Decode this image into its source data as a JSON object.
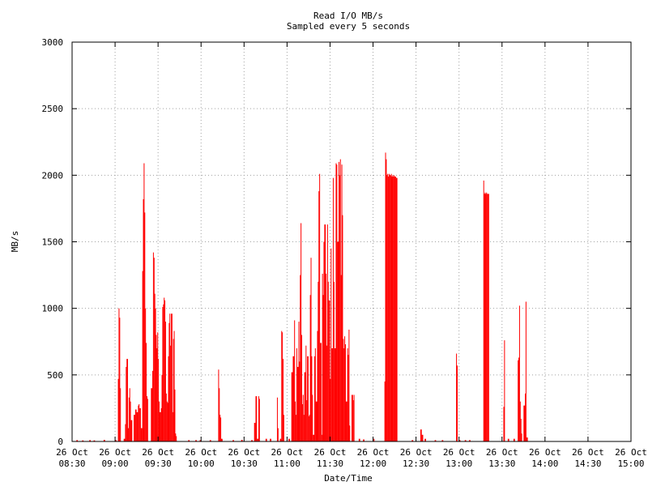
{
  "chart_data": {
    "type": "bar",
    "title": "Read I/O MB/s",
    "subtitle": "Sampled every 5 seconds",
    "xlabel": "Date/Time",
    "ylabel": "MB/s",
    "xlim": [
      "2024-10-26 08:30",
      "2024-10-26 15:00"
    ],
    "ylim": [
      0,
      3000
    ],
    "grid": true,
    "bar_color": "#ff0000",
    "x_ticks": [
      {
        "date": "26 Oct",
        "time": "08:30"
      },
      {
        "date": "26 Oct",
        "time": "09:00"
      },
      {
        "date": "26 Oct",
        "time": "09:30"
      },
      {
        "date": "26 Oct",
        "time": "10:00"
      },
      {
        "date": "26 Oct",
        "time": "10:30"
      },
      {
        "date": "26 Oct",
        "time": "11:00"
      },
      {
        "date": "26 Oct",
        "time": "11:30"
      },
      {
        "date": "26 Oct",
        "time": "12:00"
      },
      {
        "date": "26 Oct",
        "time": "12:30"
      },
      {
        "date": "26 Oct",
        "time": "13:00"
      },
      {
        "date": "26 Oct",
        "time": "13:30"
      },
      {
        "date": "26 Oct",
        "time": "14:00"
      },
      {
        "date": "26 Oct",
        "time": "14:30"
      },
      {
        "date": "26 Oct",
        "time": "15:00"
      }
    ],
    "y_ticks": [
      "0",
      "500",
      "1000",
      "1500",
      "2000",
      "2500",
      "3000"
    ],
    "samples": [
      {
        "t": "08:33",
        "v": 10
      },
      {
        "t": "08:37",
        "v": 8
      },
      {
        "t": "08:42",
        "v": 10
      },
      {
        "t": "08:45",
        "v": 8
      },
      {
        "t": "08:52",
        "v": 12
      },
      {
        "t": "09:00",
        "v": 10
      },
      {
        "t": "09:02",
        "v": 470
      },
      {
        "t": "09:02",
        "v": 1000
      },
      {
        "t": "09:03",
        "v": 930
      },
      {
        "t": "09:03",
        "v": 400
      },
      {
        "t": "09:06",
        "v": 20
      },
      {
        "t": "09:07",
        "v": 130
      },
      {
        "t": "09:07",
        "v": 560
      },
      {
        "t": "09:08",
        "v": 620
      },
      {
        "t": "09:09",
        "v": 100
      },
      {
        "t": "09:09",
        "v": 330
      },
      {
        "t": "09:10",
        "v": 400
      },
      {
        "t": "09:10",
        "v": 300
      },
      {
        "t": "09:11",
        "v": 160
      },
      {
        "t": "09:13",
        "v": 200
      },
      {
        "t": "09:14",
        "v": 240
      },
      {
        "t": "09:15",
        "v": 220
      },
      {
        "t": "09:16",
        "v": 270
      },
      {
        "t": "09:16",
        "v": 280
      },
      {
        "t": "09:17",
        "v": 250
      },
      {
        "t": "09:18",
        "v": 100
      },
      {
        "t": "09:19",
        "v": 1280
      },
      {
        "t": "09:19",
        "v": 1820
      },
      {
        "t": "09:20",
        "v": 2090
      },
      {
        "t": "09:20",
        "v": 1720
      },
      {
        "t": "09:21",
        "v": 1000
      },
      {
        "t": "09:21",
        "v": 740
      },
      {
        "t": "09:22",
        "v": 340
      },
      {
        "t": "09:22",
        "v": 320
      },
      {
        "t": "09:25",
        "v": 400
      },
      {
        "t": "09:26",
        "v": 530
      },
      {
        "t": "09:26",
        "v": 1420
      },
      {
        "t": "09:27",
        "v": 1380
      },
      {
        "t": "09:27",
        "v": 1110
      },
      {
        "t": "09:28",
        "v": 1000
      },
      {
        "t": "09:28",
        "v": 800
      },
      {
        "t": "09:29",
        "v": 700
      },
      {
        "t": "09:29",
        "v": 820
      },
      {
        "t": "09:30",
        "v": 620
      },
      {
        "t": "09:30",
        "v": 300
      },
      {
        "t": "09:31",
        "v": 220
      },
      {
        "t": "09:32",
        "v": 250
      },
      {
        "t": "09:32",
        "v": 500
      },
      {
        "t": "09:33",
        "v": 1010
      },
      {
        "t": "09:33",
        "v": 1030
      },
      {
        "t": "09:34",
        "v": 1080
      },
      {
        "t": "09:34",
        "v": 1060
      },
      {
        "t": "09:35",
        "v": 900
      },
      {
        "t": "09:35",
        "v": 360
      },
      {
        "t": "09:36",
        "v": 300
      },
      {
        "t": "09:36",
        "v": 290
      },
      {
        "t": "09:37",
        "v": 640
      },
      {
        "t": "09:37",
        "v": 890
      },
      {
        "t": "09:38",
        "v": 960
      },
      {
        "t": "09:38",
        "v": 720
      },
      {
        "t": "09:39",
        "v": 960
      },
      {
        "t": "09:40",
        "v": 220
      },
      {
        "t": "09:40",
        "v": 770
      },
      {
        "t": "09:41",
        "v": 830
      },
      {
        "t": "09:41",
        "v": 390
      },
      {
        "t": "09:42",
        "v": 60
      },
      {
        "t": "09:42",
        "v": 40
      },
      {
        "t": "09:51",
        "v": 10
      },
      {
        "t": "09:56",
        "v": 10
      },
      {
        "t": "09:59",
        "v": 10
      },
      {
        "t": "10:06",
        "v": 10
      },
      {
        "t": "10:12",
        "v": 540
      },
      {
        "t": "10:12",
        "v": 400
      },
      {
        "t": "10:13",
        "v": 200
      },
      {
        "t": "10:13",
        "v": 180
      },
      {
        "t": "10:14",
        "v": 20
      },
      {
        "t": "10:22",
        "v": 10
      },
      {
        "t": "10:28",
        "v": 12
      },
      {
        "t": "10:35",
        "v": 10
      },
      {
        "t": "10:37",
        "v": 140
      },
      {
        "t": "10:38",
        "v": 340
      },
      {
        "t": "10:39",
        "v": 20
      },
      {
        "t": "10:40",
        "v": 340
      },
      {
        "t": "10:40",
        "v": 320
      },
      {
        "t": "10:45",
        "v": 20
      },
      {
        "t": "10:48",
        "v": 20
      },
      {
        "t": "10:53",
        "v": 330
      },
      {
        "t": "10:53",
        "v": 100
      },
      {
        "t": "10:55",
        "v": 20
      },
      {
        "t": "10:56",
        "v": 830
      },
      {
        "t": "10:56",
        "v": 820
      },
      {
        "t": "10:57",
        "v": 620
      },
      {
        "t": "10:57",
        "v": 200
      },
      {
        "t": "11:01",
        "v": 20
      },
      {
        "t": "11:03",
        "v": 520
      },
      {
        "t": "11:04",
        "v": 640
      },
      {
        "t": "11:05",
        "v": 910
      },
      {
        "t": "11:05",
        "v": 300
      },
      {
        "t": "11:06",
        "v": 200
      },
      {
        "t": "11:06",
        "v": 700
      },
      {
        "t": "11:07",
        "v": 560
      },
      {
        "t": "11:08",
        "v": 900
      },
      {
        "t": "11:08",
        "v": 600
      },
      {
        "t": "11:09",
        "v": 1250
      },
      {
        "t": "11:09",
        "v": 1640
      },
      {
        "t": "11:10",
        "v": 800
      },
      {
        "t": "11:10",
        "v": 280
      },
      {
        "t": "11:11",
        "v": 350
      },
      {
        "t": "11:11",
        "v": 200
      },
      {
        "t": "11:12",
        "v": 520
      },
      {
        "t": "11:13",
        "v": 720
      },
      {
        "t": "11:13",
        "v": 310
      },
      {
        "t": "11:14",
        "v": 640
      },
      {
        "t": "11:15",
        "v": 190
      },
      {
        "t": "11:15",
        "v": 200
      },
      {
        "t": "11:16",
        "v": 1100
      },
      {
        "t": "11:16",
        "v": 1380
      },
      {
        "t": "11:17",
        "v": 640
      },
      {
        "t": "11:17",
        "v": 350
      },
      {
        "t": "11:18",
        "v": 50
      },
      {
        "t": "11:19",
        "v": 640
      },
      {
        "t": "11:19",
        "v": 700
      },
      {
        "t": "11:20",
        "v": 300
      },
      {
        "t": "11:21",
        "v": 830
      },
      {
        "t": "11:21",
        "v": 1200
      },
      {
        "t": "11:22",
        "v": 1880
      },
      {
        "t": "11:22",
        "v": 2010
      },
      {
        "t": "11:23",
        "v": 740
      },
      {
        "t": "11:24",
        "v": 50
      },
      {
        "t": "11:24",
        "v": 1260
      },
      {
        "t": "11:25",
        "v": 1100
      },
      {
        "t": "11:25",
        "v": 1500
      },
      {
        "t": "11:26",
        "v": 1630
      },
      {
        "t": "11:27",
        "v": 1260
      },
      {
        "t": "11:27",
        "v": 720
      },
      {
        "t": "11:28",
        "v": 1630
      },
      {
        "t": "11:28",
        "v": 1200
      },
      {
        "t": "11:29",
        "v": 1060
      },
      {
        "t": "11:30",
        "v": 470
      },
      {
        "t": "11:30",
        "v": 1450
      },
      {
        "t": "11:31",
        "v": 700
      },
      {
        "t": "11:32",
        "v": 1980
      },
      {
        "t": "11:32",
        "v": 1200
      },
      {
        "t": "11:33",
        "v": 700
      },
      {
        "t": "11:34",
        "v": 2090
      },
      {
        "t": "11:34",
        "v": 2080
      },
      {
        "t": "11:35",
        "v": 1500
      },
      {
        "t": "11:36",
        "v": 2100
      },
      {
        "t": "11:36",
        "v": 2000
      },
      {
        "t": "11:37",
        "v": 2120
      },
      {
        "t": "11:37",
        "v": 1250
      },
      {
        "t": "11:38",
        "v": 2080
      },
      {
        "t": "11:38",
        "v": 1700
      },
      {
        "t": "11:39",
        "v": 770
      },
      {
        "t": "11:39",
        "v": 700
      },
      {
        "t": "11:40",
        "v": 790
      },
      {
        "t": "11:40",
        "v": 730
      },
      {
        "t": "11:41",
        "v": 300
      },
      {
        "t": "11:42",
        "v": 700
      },
      {
        "t": "11:42",
        "v": 650
      },
      {
        "t": "11:43",
        "v": 840
      },
      {
        "t": "11:43",
        "v": 120
      },
      {
        "t": "11:45",
        "v": 350
      },
      {
        "t": "11:46",
        "v": 310
      },
      {
        "t": "11:46",
        "v": 350
      },
      {
        "t": "11:50",
        "v": 20
      },
      {
        "t": "11:53",
        "v": 15
      },
      {
        "t": "12:00",
        "v": 20
      },
      {
        "t": "12:08",
        "v": 450
      },
      {
        "t": "12:08",
        "v": 2170
      },
      {
        "t": "12:09",
        "v": 2120
      },
      {
        "t": "12:09",
        "v": 2000
      },
      {
        "t": "12:10",
        "v": 2010
      },
      {
        "t": "12:10",
        "v": 1990
      },
      {
        "t": "12:11",
        "v": 2010
      },
      {
        "t": "12:11",
        "v": 2000
      },
      {
        "t": "12:12",
        "v": 2000
      },
      {
        "t": "12:12",
        "v": 2010
      },
      {
        "t": "12:13",
        "v": 1990
      },
      {
        "t": "12:13",
        "v": 2000
      },
      {
        "t": "12:14",
        "v": 1990
      },
      {
        "t": "12:14",
        "v": 2000
      },
      {
        "t": "12:15",
        "v": 1990
      },
      {
        "t": "12:15",
        "v": 1990
      },
      {
        "t": "12:16",
        "v": 1980
      },
      {
        "t": "12:27",
        "v": 10
      },
      {
        "t": "12:33",
        "v": 90
      },
      {
        "t": "12:34",
        "v": 50
      },
      {
        "t": "12:36",
        "v": 20
      },
      {
        "t": "12:43",
        "v": 10
      },
      {
        "t": "12:48",
        "v": 10
      },
      {
        "t": "12:58",
        "v": 660
      },
      {
        "t": "12:58",
        "v": 570
      },
      {
        "t": "13:00",
        "v": 10
      },
      {
        "t": "13:04",
        "v": 10
      },
      {
        "t": "13:07",
        "v": 10
      },
      {
        "t": "13:17",
        "v": 1960
      },
      {
        "t": "13:17",
        "v": 1860
      },
      {
        "t": "13:18",
        "v": 1870
      },
      {
        "t": "13:18",
        "v": 1860
      },
      {
        "t": "13:19",
        "v": 1870
      },
      {
        "t": "13:19",
        "v": 1860
      },
      {
        "t": "13:20",
        "v": 1860
      },
      {
        "t": "13:31",
        "v": 260
      },
      {
        "t": "13:31",
        "v": 760
      },
      {
        "t": "13:34",
        "v": 20
      },
      {
        "t": "13:38",
        "v": 20
      },
      {
        "t": "13:41",
        "v": 610
      },
      {
        "t": "13:41",
        "v": 630
      },
      {
        "t": "13:42",
        "v": 1020
      },
      {
        "t": "13:42",
        "v": 300
      },
      {
        "t": "13:43",
        "v": 170
      },
      {
        "t": "13:43",
        "v": 60
      },
      {
        "t": "13:45",
        "v": 270
      },
      {
        "t": "13:46",
        "v": 360
      },
      {
        "t": "13:46",
        "v": 1050
      },
      {
        "t": "13:47",
        "v": 30
      }
    ]
  }
}
